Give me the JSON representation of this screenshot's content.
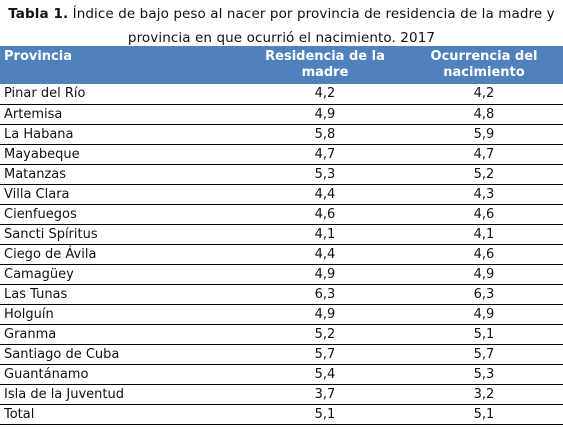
{
  "caption": {
    "label": "Tabla 1.",
    "text": "Índice de bajo peso al nacer por provincia de residencia de la madre y provincia en que ocurrió el nacimiento. 2017"
  },
  "table": {
    "headers": [
      "Provincia",
      "Residencia de la madre",
      "Ocurrencia del nacimiento"
    ],
    "rows": [
      [
        "Pinar del Río",
        "4,2",
        "4,2"
      ],
      [
        "Artemisa",
        "4,9",
        "4,8"
      ],
      [
        "La Habana",
        "5,8",
        "5,9"
      ],
      [
        "Mayabeque",
        "4,7",
        "4,7"
      ],
      [
        "Matanzas",
        "5,3",
        "5,2"
      ],
      [
        "Villa Clara",
        "4,4",
        "4,3"
      ],
      [
        "Cienfuegos",
        "4,6",
        "4,6"
      ],
      [
        "Sancti Spíritus",
        "4,1",
        "4,1"
      ],
      [
        "Ciego de Ávila",
        "4,4",
        "4,6"
      ],
      [
        "Camagüey",
        "4,9",
        "4,9"
      ],
      [
        "Las Tunas",
        "6,3",
        "6,3"
      ],
      [
        "Holguín",
        "4,9",
        "4,9"
      ],
      [
        "Granma",
        "5,2",
        "5,1"
      ],
      [
        "Santiago de Cuba",
        "5,7",
        "5,7"
      ],
      [
        "Guantánamo",
        "5,4",
        "5,3"
      ],
      [
        "Isla de la Juventud",
        "3,7",
        "3,2"
      ],
      [
        "Total",
        "5,1",
        "5,1"
      ]
    ]
  },
  "colors": {
    "header_bg": "#4f81bd",
    "header_text": "#ffffff"
  }
}
